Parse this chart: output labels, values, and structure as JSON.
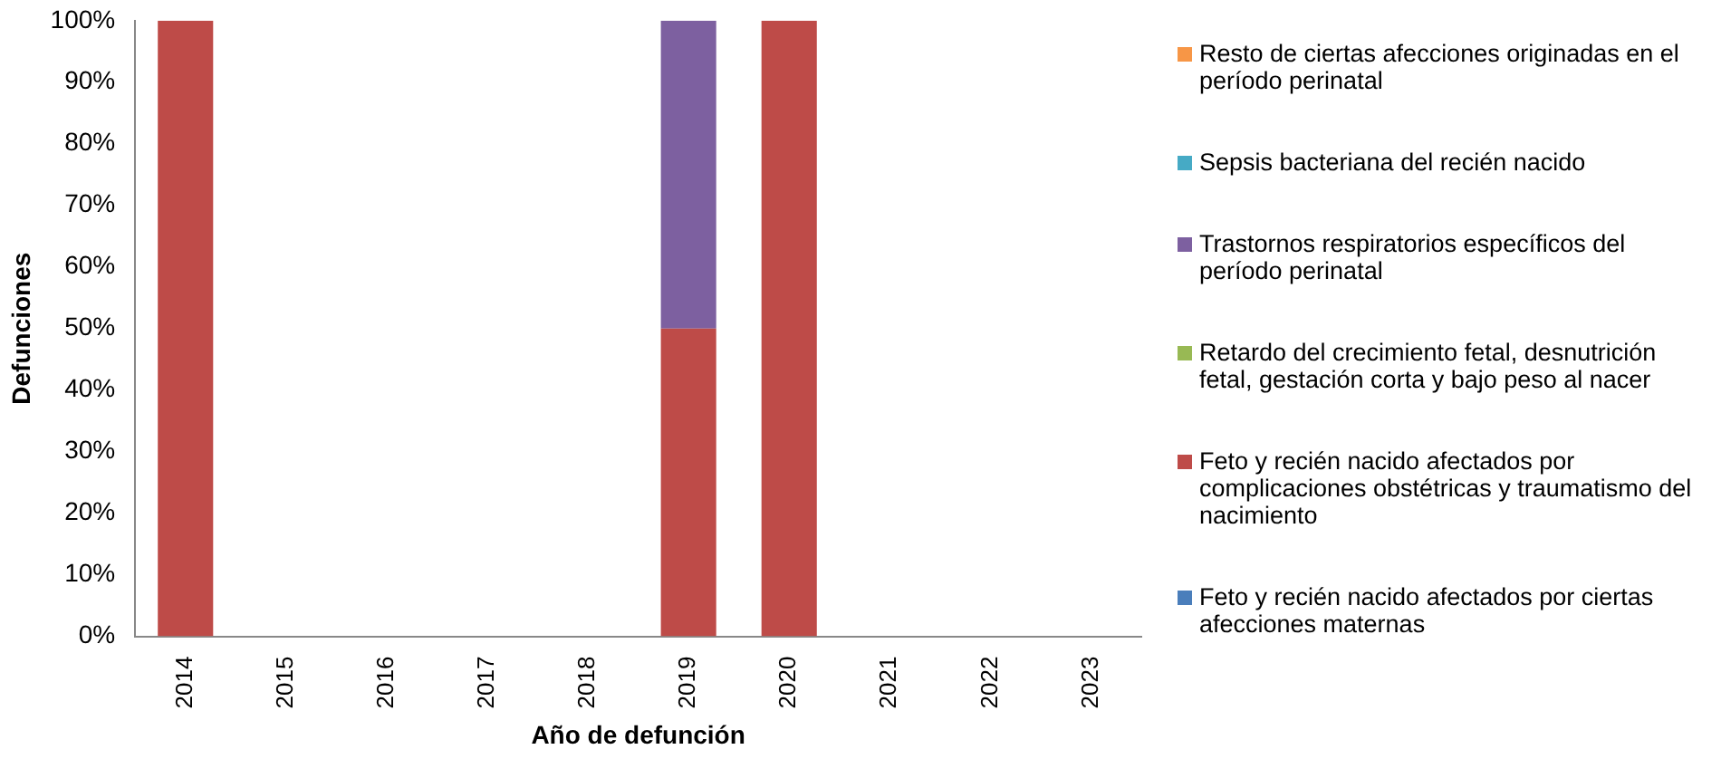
{
  "chart_data": {
    "type": "bar",
    "stacked": true,
    "xlabel": "Año de defunción",
    "ylabel": "Defunciones",
    "categories": [
      "2014",
      "2015",
      "2016",
      "2017",
      "2018",
      "2019",
      "2020",
      "2021",
      "2022",
      "2023"
    ],
    "series": [
      {
        "name": "Feto y recién nacido afectados por ciertas afecciones maternas",
        "color": "#4a7ebb",
        "values": [
          0,
          0,
          0,
          0,
          0,
          0,
          0,
          0,
          0,
          0
        ]
      },
      {
        "name": "Feto y recién nacido afectados por complicaciones obstétricas y traumatismo del nacimiento",
        "color": "#be4b48",
        "values": [
          100,
          0,
          0,
          0,
          0,
          50,
          100,
          0,
          0,
          0
        ]
      },
      {
        "name": "Retardo del crecimiento fetal, desnutrición fetal, gestación corta y bajo peso al nacer",
        "color": "#98b954",
        "values": [
          0,
          0,
          0,
          0,
          0,
          0,
          0,
          0,
          0,
          0
        ]
      },
      {
        "name": "Trastornos respiratorios específicos del período perinatal",
        "color": "#7d60a0",
        "values": [
          0,
          0,
          0,
          0,
          0,
          50,
          0,
          0,
          0,
          0
        ]
      },
      {
        "name": "Sepsis bacteriana del recién nacido",
        "color": "#46aac5",
        "values": [
          0,
          0,
          0,
          0,
          0,
          0,
          0,
          0,
          0,
          0
        ]
      },
      {
        "name": "Resto de ciertas afecciones originadas en el período perinatal",
        "color": "#f79646",
        "values": [
          0,
          0,
          0,
          0,
          0,
          0,
          0,
          0,
          0,
          0
        ]
      }
    ],
    "ylim": [
      0,
      100
    ],
    "yticks": [
      {
        "value": 0,
        "label": "0%"
      },
      {
        "value": 10,
        "label": "10%"
      },
      {
        "value": 20,
        "label": "20%"
      },
      {
        "value": 30,
        "label": "30%"
      },
      {
        "value": 40,
        "label": "40%"
      },
      {
        "value": 50,
        "label": "50%"
      },
      {
        "value": 60,
        "label": "60%"
      },
      {
        "value": 70,
        "label": "70%"
      },
      {
        "value": 80,
        "label": "80%"
      },
      {
        "value": 90,
        "label": "90%"
      },
      {
        "value": 100,
        "label": "100%"
      }
    ],
    "grid": false,
    "legend": "right"
  }
}
